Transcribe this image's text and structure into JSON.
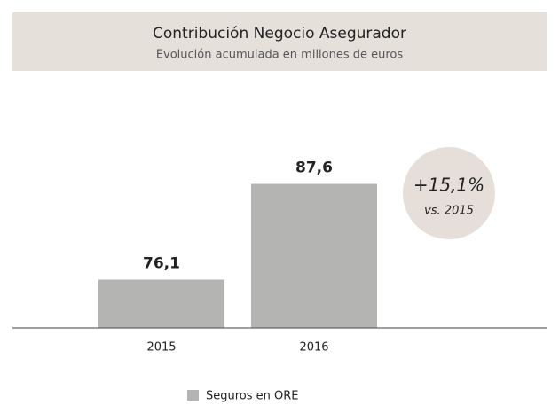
{
  "chart_data": {
    "type": "bar",
    "title": "Contribución Negocio Asegurador",
    "subtitle": "Evolución acumulada en millones de euros",
    "categories": [
      "2015",
      "2016"
    ],
    "series": [
      {
        "name": "Seguros en ORE",
        "color": "#b4b4b2",
        "values": [
          76.1,
          87.6
        ],
        "value_labels": [
          "76,1",
          "87,6"
        ]
      }
    ],
    "ylim": [
      70.3,
      90
    ],
    "annotations": [
      "+15,1%",
      "vs. 2015"
    ]
  }
}
